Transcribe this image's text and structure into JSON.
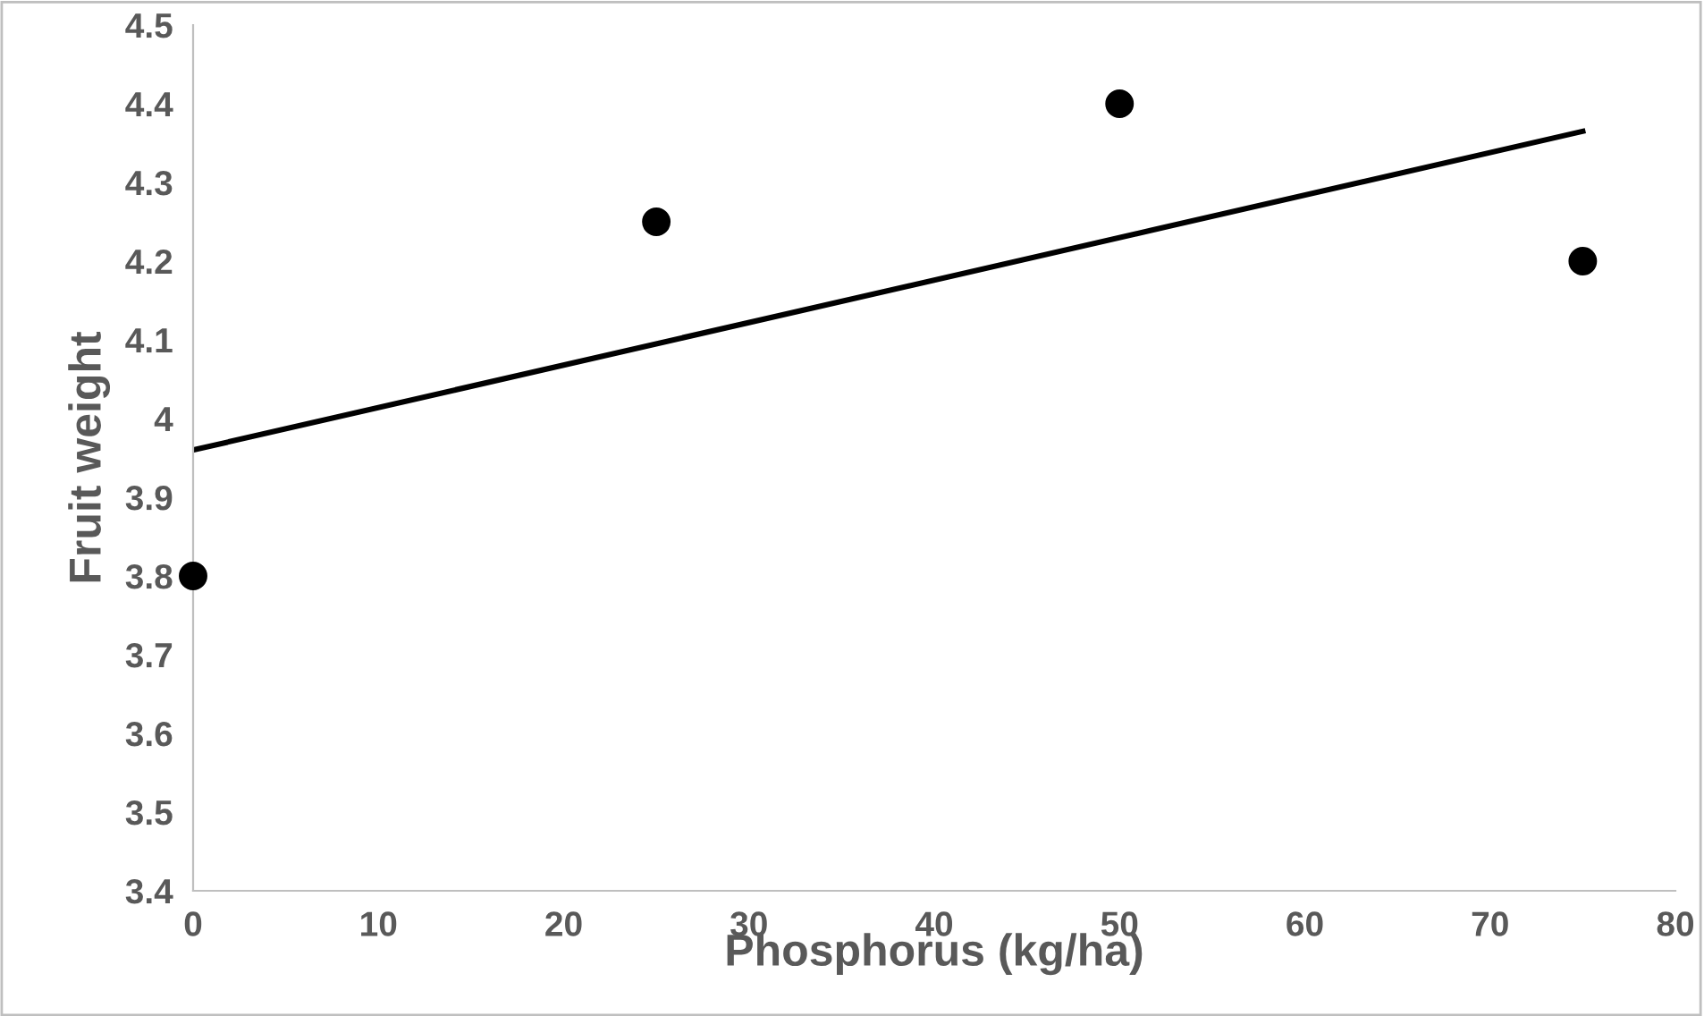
{
  "chart_data": {
    "type": "scatter",
    "xlabel": "Phosphorus (kg/ha)",
    "ylabel": "Fruit weight",
    "series": [
      {
        "color": "#000000",
        "marker": "circle",
        "x": [
          0,
          25,
          50,
          75
        ],
        "values": [
          3.8,
          4.25,
          4.4,
          4.2
        ]
      },
      {
        "type": "line",
        "marker": "none",
        "color": "#000000",
        "x": [
          0,
          75
        ],
        "values": [
          3.96,
          4.365
        ]
      }
    ],
    "xlim": [
      0,
      80
    ],
    "xticks": [
      0,
      10,
      20,
      30,
      40,
      50,
      60,
      70,
      80
    ],
    "ylim": [
      3.4,
      4.5
    ],
    "yticks": [
      3.4,
      3.5,
      3.6,
      3.7,
      3.8,
      3.9,
      4,
      4.1,
      4.2,
      4.3,
      4.4,
      4.5
    ],
    "grid": false
  }
}
